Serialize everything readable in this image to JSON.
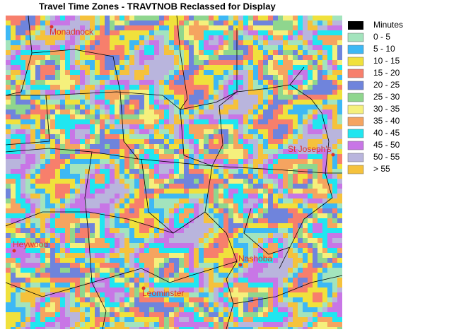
{
  "title": "Travel Time Zones - TRAVTNOB Reclassed for Display",
  "legend": {
    "header": {
      "label": "Minutes",
      "color": "#000000"
    },
    "classes": [
      {
        "label": "0 - 5",
        "color": "#a3e4bd"
      },
      {
        "label": "5 - 10",
        "color": "#3db8f5"
      },
      {
        "label": "10 - 15",
        "color": "#f0e13c"
      },
      {
        "label": "15 - 20",
        "color": "#f77f6c"
      },
      {
        "label": "20 - 25",
        "color": "#6f84dc"
      },
      {
        "label": "25 - 30",
        "color": "#8fd68e"
      },
      {
        "label": "30 - 35",
        "color": "#f5f07c"
      },
      {
        "label": "35 - 40",
        "color": "#f5a460"
      },
      {
        "label": "40 - 45",
        "color": "#20e6f0"
      },
      {
        "label": "45 - 50",
        "color": "#c876e6"
      },
      {
        "label": "50 - 55",
        "color": "#b9b5dd"
      },
      {
        "label": "> 55",
        "color": "#f5c23c"
      }
    ]
  },
  "places": [
    {
      "label": "Monadnock"
    },
    {
      "label": "St Joseph's"
    },
    {
      "label": "Heywood"
    },
    {
      "label": "Nashoba"
    },
    {
      "label": "Leominster"
    }
  ]
}
